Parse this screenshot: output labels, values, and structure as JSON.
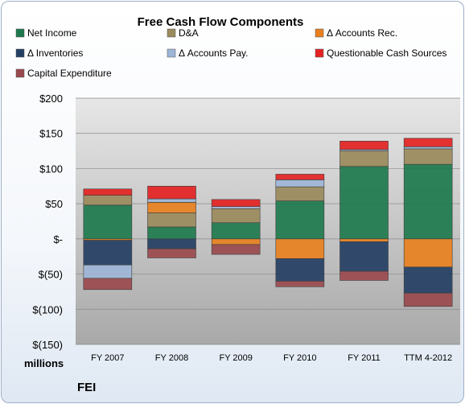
{
  "chart_data": {
    "type": "bar",
    "stacked": true,
    "title": "Free Cash Flow Components",
    "unit_label": "millions",
    "company": "FEI",
    "categories": [
      "FY 2007",
      "FY 2008",
      "FY 2009",
      "FY 2010",
      "FY 2011",
      "TTM 4-2012"
    ],
    "ylim": [
      -150,
      200
    ],
    "yticks": [
      {
        "value": 200,
        "label": "$200"
      },
      {
        "value": 150,
        "label": "$150"
      },
      {
        "value": 100,
        "label": "$100"
      },
      {
        "value": 50,
        "label": "$50"
      },
      {
        "value": 0,
        "label": "$-"
      },
      {
        "value": -50,
        "label": "$(50)"
      },
      {
        "value": -100,
        "label": "$(100)"
      },
      {
        "value": -150,
        "label": "$(150)"
      }
    ],
    "grid": true,
    "legend_position": "top",
    "series": [
      {
        "name": "Net Income",
        "color": "#1e7a4e",
        "values": [
          48,
          17,
          23,
          54,
          103,
          106
        ]
      },
      {
        "name": "D&A",
        "color": "#9a8a5c",
        "values": [
          14,
          20,
          20,
          20,
          22,
          22
        ]
      },
      {
        "name": "Δ Accounts Rec.",
        "color": "#e8801f",
        "values": [
          -2,
          15,
          -8,
          -28,
          -4,
          -40
        ]
      },
      {
        "name": "Δ Inventories",
        "color": "#243f64",
        "values": [
          -35,
          -14,
          0,
          -32,
          -42,
          -37
        ]
      },
      {
        "name": "Δ Accounts Pay.",
        "color": "#9db5d6",
        "values": [
          -19,
          5,
          3,
          10,
          2,
          3
        ]
      },
      {
        "name": "Questionable Cash Sources",
        "color": "#e32322",
        "values": [
          9,
          18,
          10,
          8,
          12,
          12
        ]
      },
      {
        "name": "Capital Expenditure",
        "color": "#9a4a4d",
        "values": [
          -16,
          -13,
          -14,
          -8,
          -13,
          -19
        ]
      }
    ]
  }
}
